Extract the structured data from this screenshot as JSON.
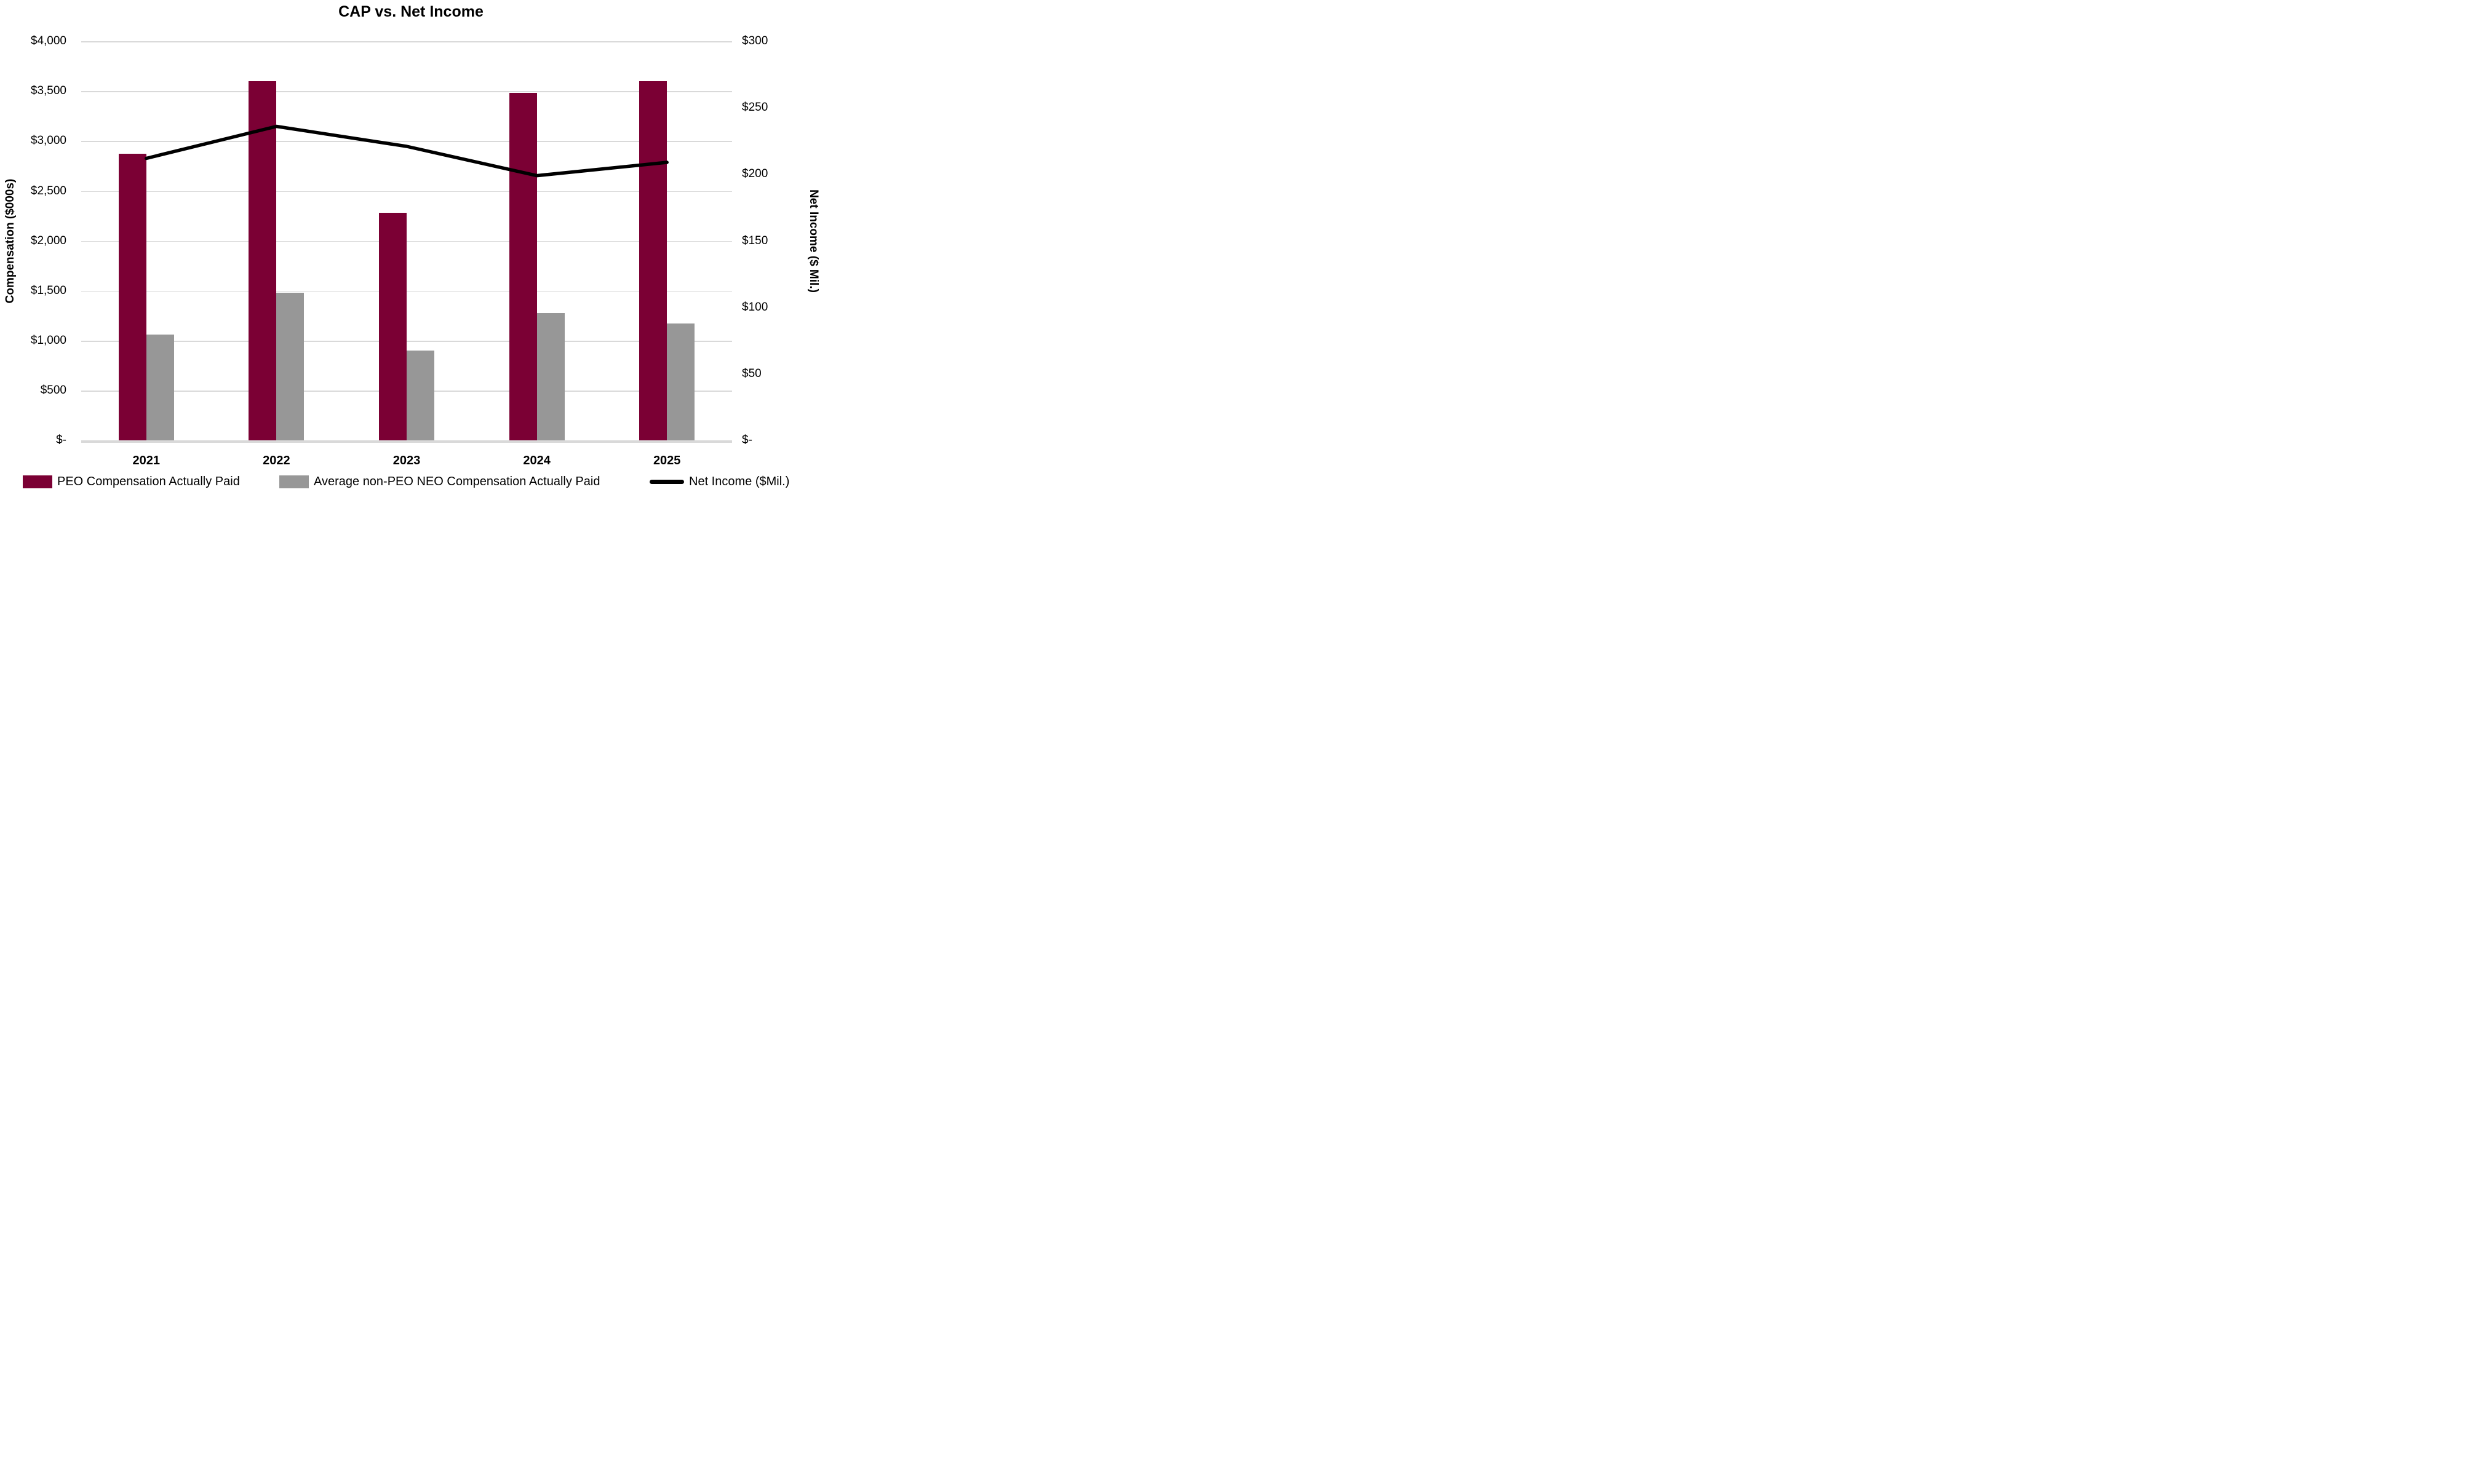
{
  "title": "CAP vs. Net Income",
  "colors": {
    "peo_bar": "#7B0034",
    "neo_bar": "#979797",
    "net_income_line": "#000000",
    "gridline": "#D9D9D9",
    "background": "#FFFFFF",
    "text": "#000000"
  },
  "chart_data": {
    "type": "combo-bar-line",
    "title": "CAP vs. Net Income",
    "categories": [
      "2021",
      "2022",
      "2023",
      "2024",
      "2025"
    ],
    "series": [
      {
        "name": "PEO Compensation Actually Paid",
        "type": "bar",
        "axis": "left",
        "color": "#7B0034",
        "values": [
          2870,
          3600,
          2280,
          3480,
          3600
        ]
      },
      {
        "name": "Average non-PEO NEO Compensation Actually Paid",
        "type": "bar",
        "axis": "left",
        "color": "#979797",
        "values": [
          1060,
          1480,
          900,
          1280,
          1170
        ]
      },
      {
        "name": "Net Income ($Mil.)",
        "type": "line",
        "axis": "right",
        "color": "#000000",
        "values": [
          212,
          236,
          221,
          199,
          209
        ]
      }
    ],
    "left_axis": {
      "label": "Compensation ($000s)",
      "min": 0,
      "max": 4000,
      "step": 500,
      "tick_labels_top_to_bottom": [
        "$4,000",
        "$3,500",
        "$3,000",
        "$2,500",
        "$2,000",
        "$1,500",
        "$1,000",
        "$500",
        "$-"
      ]
    },
    "right_axis": {
      "label": "Net Income ($ Mil.)",
      "min": 0,
      "max": 300,
      "step": 50,
      "tick_labels_top_to_bottom": [
        "$300",
        "$250",
        "$200",
        "$150",
        "$100",
        "$50",
        "$-"
      ]
    },
    "grid": true,
    "legend_position": "bottom"
  },
  "legend": {
    "items": [
      {
        "label": "PEO Compensation Actually Paid",
        "swatch": "rect",
        "color": "#7B0034"
      },
      {
        "label": "Average non-PEO NEO Compensation Actually Paid",
        "swatch": "rect",
        "color": "#979797"
      },
      {
        "label": "Net Income ($Mil.)",
        "swatch": "line",
        "color": "#000000"
      }
    ]
  }
}
